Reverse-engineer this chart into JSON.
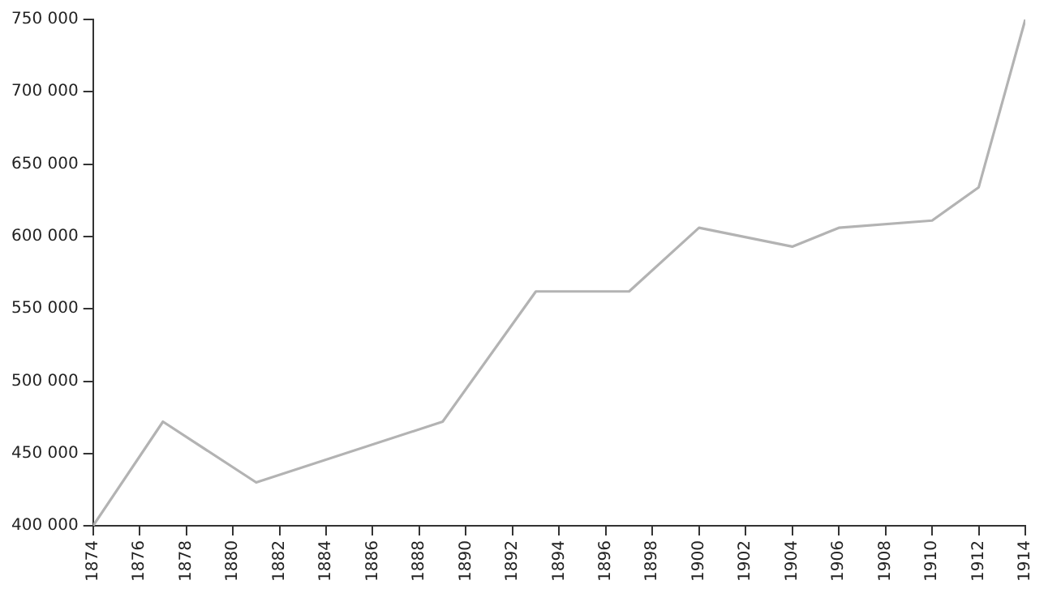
{
  "chart_data": {
    "type": "line",
    "x": [
      1874,
      1877,
      1881,
      1889,
      1893,
      1897,
      1900,
      1904,
      1906,
      1910,
      1912,
      1914
    ],
    "series": [
      {
        "color": "#b3b3b3",
        "values": [
          400000,
          472000,
          430000,
          472000,
          562000,
          562000,
          606000,
          593000,
          606000,
          611000,
          634000,
          750000
        ]
      }
    ],
    "xlim": [
      1874,
      1914
    ],
    "xticks": [
      1874,
      1876,
      1878,
      1880,
      1882,
      1884,
      1886,
      1888,
      1890,
      1892,
      1894,
      1896,
      1898,
      1900,
      1902,
      1904,
      1906,
      1908,
      1910,
      1912,
      1914
    ],
    "ylim": [
      400000,
      750000
    ],
    "yticks": [
      {
        "value": 400000,
        "label": "400 000"
      },
      {
        "value": 450000,
        "label": "450 000"
      },
      {
        "value": 500000,
        "label": "500 000"
      },
      {
        "value": 550000,
        "label": "550 000"
      },
      {
        "value": 600000,
        "label": "600 000"
      },
      {
        "value": 650000,
        "label": "650 000"
      },
      {
        "value": 700000,
        "label": "700 000"
      },
      {
        "value": 750000,
        "label": "750 000"
      }
    ],
    "grid": false,
    "legend": false,
    "marker": "none",
    "line_style": "solid"
  }
}
